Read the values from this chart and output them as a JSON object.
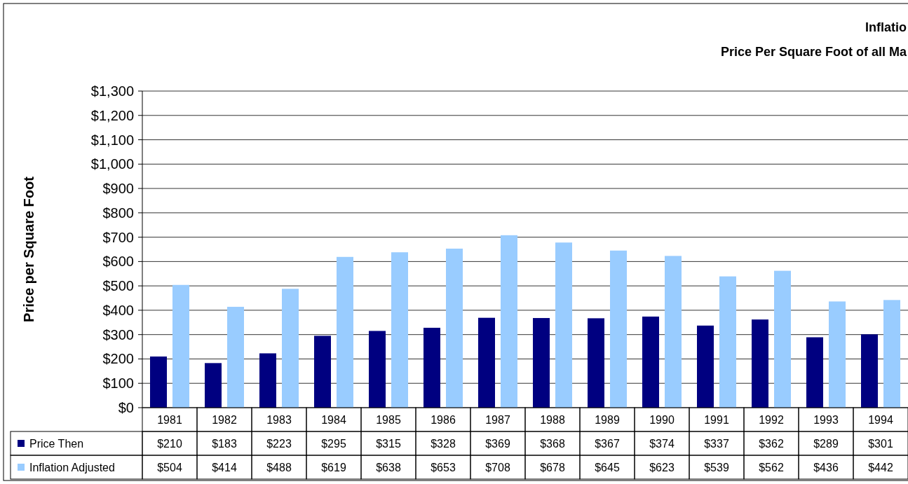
{
  "chart_data": {
    "type": "bar",
    "title": "Inflatio",
    "subtitle": "Price Per Square Foot of all Ma",
    "ylabel": "Price per Square Foot",
    "categories": [
      "1981",
      "1982",
      "1983",
      "1984",
      "1985",
      "1986",
      "1987",
      "1988",
      "1989",
      "1990",
      "1991",
      "1992",
      "1993",
      "1994"
    ],
    "series": [
      {
        "name": "Price Then",
        "color": "#000080",
        "values": [
          210,
          183,
          223,
          295,
          315,
          328,
          369,
          368,
          367,
          374,
          337,
          362,
          289,
          301
        ],
        "value_labels": [
          "$210",
          "$183",
          "$223",
          "$295",
          "$315",
          "$328",
          "$369",
          "$368",
          "$367",
          "$374",
          "$337",
          "$362",
          "$289",
          "$301"
        ]
      },
      {
        "name": "Inflation Adjusted",
        "color": "#99ccff",
        "values": [
          504,
          414,
          488,
          619,
          638,
          653,
          708,
          678,
          645,
          623,
          539,
          562,
          436,
          442
        ],
        "value_labels": [
          "$504",
          "$414",
          "$488",
          "$619",
          "$638",
          "$653",
          "$708",
          "$678",
          "$645",
          "$623",
          "$539",
          "$562",
          "$436",
          "$442"
        ]
      }
    ],
    "ylim": [
      0,
      1300
    ],
    "yticks": [
      {
        "value": 0,
        "label": "$0"
      },
      {
        "value": 100,
        "label": "$100"
      },
      {
        "value": 200,
        "label": "$200"
      },
      {
        "value": 300,
        "label": "$300"
      },
      {
        "value": 400,
        "label": "$400"
      },
      {
        "value": 500,
        "label": "$500"
      },
      {
        "value": 600,
        "label": "$600"
      },
      {
        "value": 700,
        "label": "$700"
      },
      {
        "value": 800,
        "label": "$800"
      },
      {
        "value": 900,
        "label": "$900"
      },
      {
        "value": 1000,
        "label": "$1,000"
      },
      {
        "value": 1100,
        "label": "$1,100"
      },
      {
        "value": 1200,
        "label": "$1,200"
      },
      {
        "value": 1300,
        "label": "$1,300"
      }
    ],
    "grid": "y",
    "legend": "bottom"
  }
}
